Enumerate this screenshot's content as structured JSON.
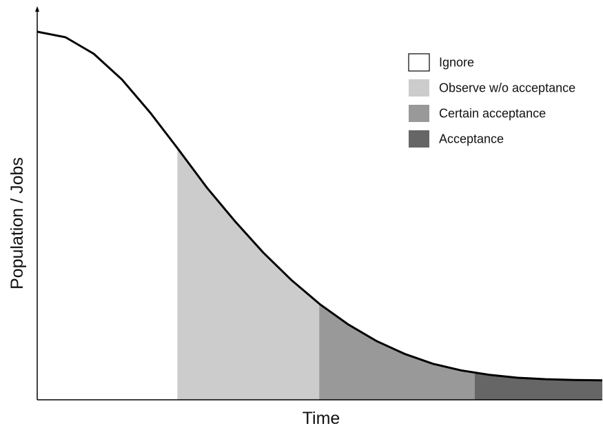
{
  "chart_data": {
    "type": "area",
    "title": "",
    "xlabel": "Time",
    "ylabel": "Population / Jobs",
    "xlim": [
      0,
      1
    ],
    "ylim": [
      0,
      1
    ],
    "grid": false,
    "legend_position": "top-right",
    "curve": {
      "x": [
        0,
        0.05,
        0.1,
        0.15,
        0.2,
        0.25,
        0.3,
        0.35,
        0.4,
        0.45,
        0.5,
        0.55,
        0.6,
        0.65,
        0.7,
        0.75,
        0.8,
        0.85,
        0.9,
        0.95,
        1.0
      ],
      "y": [
        1.0,
        0.985,
        0.94,
        0.87,
        0.78,
        0.68,
        0.577,
        0.485,
        0.4,
        0.325,
        0.26,
        0.205,
        0.16,
        0.125,
        0.098,
        0.08,
        0.068,
        0.06,
        0.056,
        0.054,
        0.053
      ]
    },
    "series": [
      {
        "name": "Ignore",
        "color": "#ffffff",
        "x_start": 0.0,
        "x_end": 0.248
      },
      {
        "name": "Observe w/o acceptance",
        "color": "#cccccc",
        "x_start": 0.248,
        "x_end": 0.499
      },
      {
        "name": "Certain acceptance",
        "color": "#999999",
        "x_start": 0.499,
        "x_end": 0.774
      },
      {
        "name": "Acceptance",
        "color": "#666666",
        "x_start": 0.774,
        "x_end": 1.0
      }
    ]
  }
}
